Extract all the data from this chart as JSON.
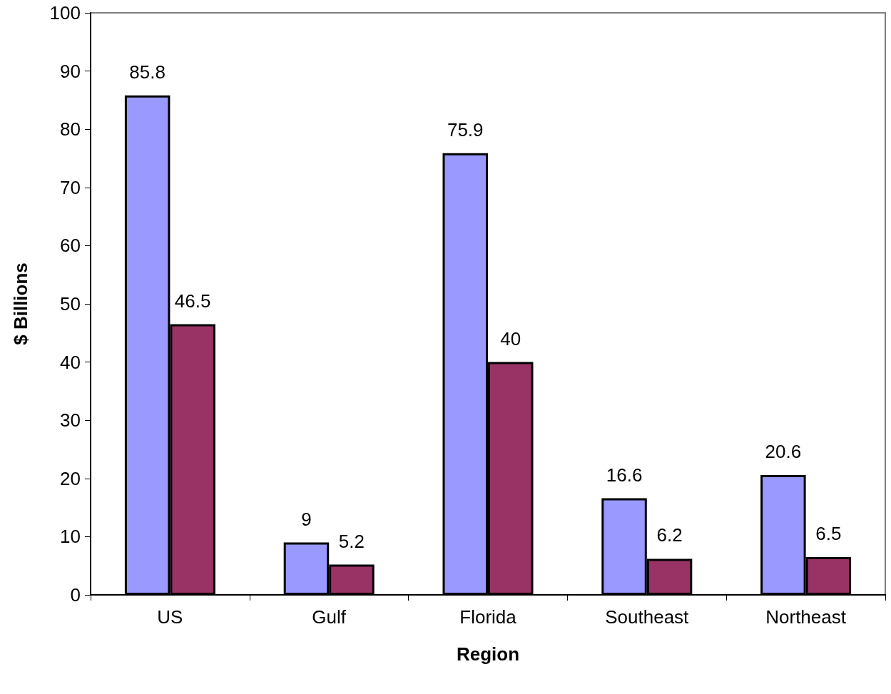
{
  "chart_data": {
    "type": "bar",
    "xlabel": "Region",
    "ylabel": "$ Billions",
    "categories": [
      "US",
      "Gulf",
      "Florida",
      "Southeast",
      "Northeast"
    ],
    "series": [
      {
        "color": "#9999ff",
        "values": [
          85.8,
          9,
          75.9,
          16.6,
          20.6
        ]
      },
      {
        "color": "#993366",
        "values": [
          46.5,
          5.2,
          40,
          6.2,
          6.5
        ]
      }
    ],
    "ylim": [
      0,
      100
    ],
    "yticks": [
      0,
      10,
      20,
      30,
      40,
      50,
      60,
      70,
      80,
      90,
      100
    ],
    "data_labels": true,
    "grid": false
  }
}
